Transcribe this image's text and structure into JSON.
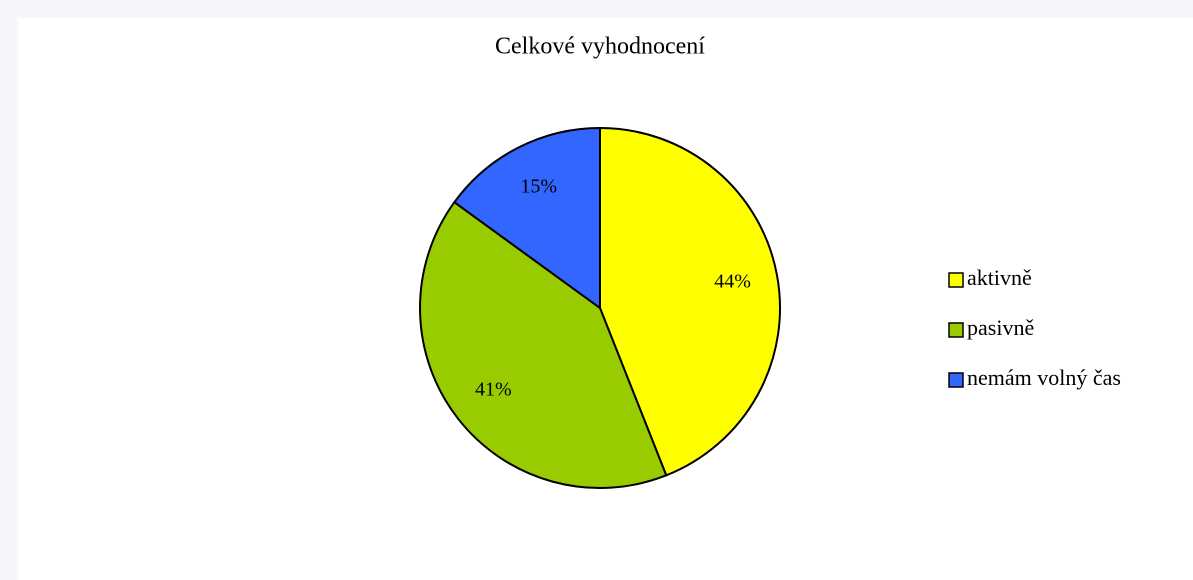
{
  "chart_data": {
    "type": "pie",
    "title": "Celkové vyhodnocení",
    "categories": [
      "aktivně",
      "pasivně",
      "nemám volný čas"
    ],
    "values": [
      44,
      41,
      15
    ],
    "value_labels": [
      "44%",
      "41%",
      "15%"
    ],
    "colors": [
      "#ffff00",
      "#99cc00",
      "#3366ff"
    ],
    "legend": "right"
  }
}
